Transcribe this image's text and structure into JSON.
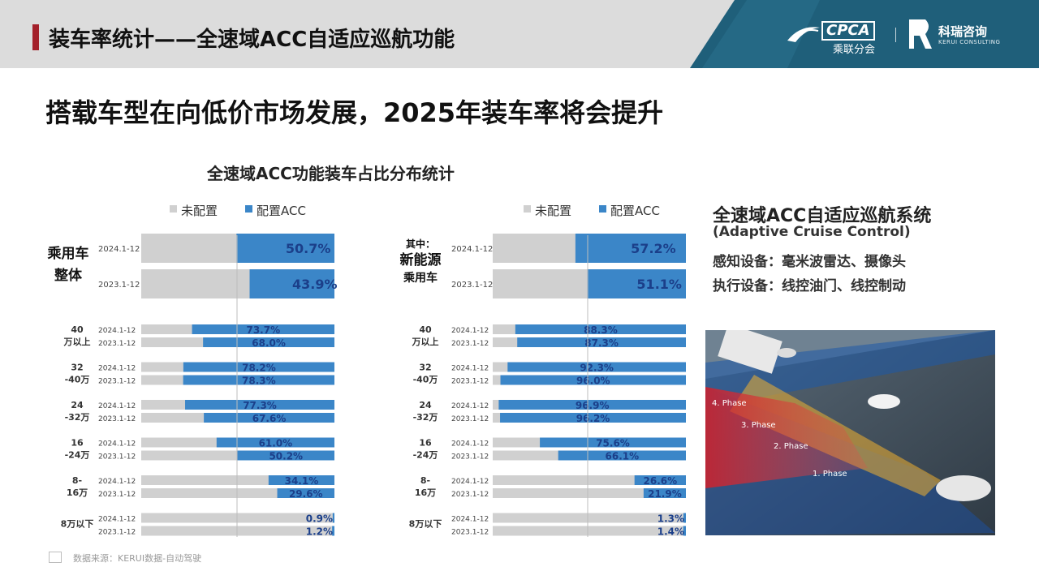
{
  "header": {
    "title": "装车率统计——全速域ACC自适应巡航功能",
    "cpca_name": "CPCA",
    "cpca_sub": "乘联分会",
    "kerui_name": "科瑞咨询",
    "kerui_sub": "KERUI CONSULTING"
  },
  "headline": "搭载车型在向低价市场发展，2025年装车率将会提升",
  "chart_title": "全速域ACC功能装车占比分布统计",
  "chart_data": [
    {
      "type": "bar",
      "orientation": "horizontal",
      "stacked": true,
      "percent_stacked": true,
      "legend": [
        "未配置",
        "配置ACC"
      ],
      "legend_position": "top",
      "series_colors": [
        "#d0d0d0",
        "#3b86c8"
      ],
      "section_label": "乘用车整体",
      "groups": [
        {
          "label": "",
          "rows": [
            {
              "period": "2024.1-12",
              "value": 50.7,
              "label": "50.7%"
            },
            {
              "period": "2023.1-12",
              "value": 43.9,
              "label": "43.9%"
            }
          ]
        },
        {
          "label": "40万以上",
          "rows": [
            {
              "period": "2024.1-12",
              "value": 73.7,
              "label": "73.7%"
            },
            {
              "period": "2023.1-12",
              "value": 68.0,
              "label": "68.0%"
            }
          ]
        },
        {
          "label": "32-40万",
          "rows": [
            {
              "period": "2024.1-12",
              "value": 78.2,
              "label": "78.2%"
            },
            {
              "period": "2023.1-12",
              "value": 78.3,
              "label": "78.3%"
            }
          ]
        },
        {
          "label": "24-32万",
          "rows": [
            {
              "period": "2024.1-12",
              "value": 77.3,
              "label": "77.3%"
            },
            {
              "period": "2023.1-12",
              "value": 67.6,
              "label": "67.6%"
            }
          ]
        },
        {
          "label": "16-24万",
          "rows": [
            {
              "period": "2024.1-12",
              "value": 61.0,
              "label": "61.0%"
            },
            {
              "period": "2023.1-12",
              "value": 50.2,
              "label": "50.2%"
            }
          ]
        },
        {
          "label": "8-16万",
          "rows": [
            {
              "period": "2024.1-12",
              "value": 34.1,
              "label": "34.1%"
            },
            {
              "period": "2023.1-12",
              "value": 29.6,
              "label": "29.6%"
            }
          ]
        },
        {
          "label": "8万以下",
          "rows": [
            {
              "period": "2024.1-12",
              "value": 0.9,
              "label": "0.9%"
            },
            {
              "period": "2023.1-12",
              "value": 1.2,
              "label": "1.2%"
            }
          ]
        }
      ]
    },
    {
      "type": "bar",
      "orientation": "horizontal",
      "stacked": true,
      "percent_stacked": true,
      "legend": [
        "未配置",
        "配置ACC"
      ],
      "legend_position": "top",
      "series_colors": [
        "#d0d0d0",
        "#3b86c8"
      ],
      "section_label": "其中：新能源乘用车",
      "groups": [
        {
          "label": "",
          "rows": [
            {
              "period": "2024.1-12",
              "value": 57.2,
              "label": "57.2%"
            },
            {
              "period": "2023.1-12",
              "value": 51.1,
              "label": "51.1%"
            }
          ]
        },
        {
          "label": "40万以上",
          "rows": [
            {
              "period": "2024.1-12",
              "value": 88.3,
              "label": "88.3%"
            },
            {
              "period": "2023.1-12",
              "value": 87.3,
              "label": "87.3%"
            }
          ]
        },
        {
          "label": "32-40万",
          "rows": [
            {
              "period": "2024.1-12",
              "value": 92.3,
              "label": "92.3%"
            },
            {
              "period": "2023.1-12",
              "value": 96.0,
              "label": "96.0%"
            }
          ]
        },
        {
          "label": "24-32万",
          "rows": [
            {
              "period": "2024.1-12",
              "value": 96.9,
              "label": "96.9%"
            },
            {
              "period": "2023.1-12",
              "value": 96.2,
              "label": "96.2%"
            }
          ]
        },
        {
          "label": "16-24万",
          "rows": [
            {
              "period": "2024.1-12",
              "value": 75.6,
              "label": "75.6%"
            },
            {
              "period": "2023.1-12",
              "value": 66.1,
              "label": "66.1%"
            }
          ]
        },
        {
          "label": "8-16万",
          "rows": [
            {
              "period": "2024.1-12",
              "value": 26.6,
              "label": "26.6%"
            },
            {
              "period": "2023.1-12",
              "value": 21.9,
              "label": "21.9%"
            }
          ]
        },
        {
          "label": "8万以下",
          "rows": [
            {
              "period": "2024.1-12",
              "value": 1.3,
              "label": "1.3%"
            },
            {
              "period": "2023.1-12",
              "value": 1.4,
              "label": "1.4%"
            }
          ]
        }
      ]
    }
  ],
  "info": {
    "title": "全速域ACC自适应巡航系统",
    "subtitle": "(Adaptive Cruise Control)",
    "line1": "感知设备：毫米波雷达、摄像头",
    "line2": "执行设备：线控油门、线控制动"
  },
  "photo": {
    "phases": [
      "4. Phase",
      "3. Phase",
      "2. Phase",
      "1. Phase"
    ]
  },
  "source": "数据来源：KERUI数据-自动驾驶"
}
